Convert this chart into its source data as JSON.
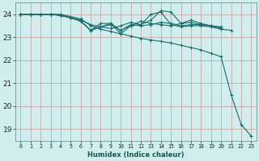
{
  "xlabel": "Humidex (Indice chaleur)",
  "bg_color": "#d0eeee",
  "line_color": "#1a6b6b",
  "grid_color_major": "#c8a8a8",
  "xlim": [
    -0.5,
    23.5
  ],
  "ylim": [
    18.5,
    24.5
  ],
  "xtick_labels": [
    "0",
    "1",
    "2",
    "3",
    "4",
    "5",
    "6",
    "7",
    "8",
    "9",
    "10",
    "11",
    "12",
    "13",
    "14",
    "15",
    "16",
    "17",
    "18",
    "19",
    "20",
    "21",
    "22",
    "23"
  ],
  "yticks": [
    19,
    20,
    21,
    22,
    23,
    24
  ],
  "series": [
    [
      24.0,
      24.0,
      24.0,
      24.0,
      24.0,
      23.9,
      23.8,
      23.5,
      23.35,
      23.25,
      23.15,
      23.05,
      22.95,
      22.88,
      22.82,
      22.75,
      22.65,
      22.55,
      22.45,
      22.3,
      22.15,
      20.5,
      19.2,
      18.7
    ],
    [
      24.0,
      24.0,
      24.0,
      24.0,
      23.95,
      23.85,
      23.75,
      23.55,
      23.45,
      23.38,
      23.5,
      23.65,
      23.55,
      24.0,
      24.1,
      23.55,
      23.45,
      23.5,
      23.5,
      23.45,
      23.35,
      23.3,
      null,
      null
    ],
    [
      24.0,
      24.0,
      24.0,
      24.0,
      23.95,
      23.85,
      23.7,
      23.3,
      23.6,
      23.6,
      23.15,
      23.5,
      23.55,
      23.75,
      24.15,
      24.1,
      23.6,
      23.65,
      23.55,
      23.5,
      23.45,
      null,
      null,
      null
    ],
    [
      24.0,
      24.0,
      24.0,
      24.0,
      23.95,
      23.85,
      23.7,
      23.3,
      23.45,
      23.55,
      23.3,
      23.5,
      23.7,
      23.6,
      23.55,
      23.5,
      23.6,
      23.75,
      23.6,
      23.5,
      23.4,
      null,
      null,
      null
    ],
    [
      24.0,
      24.0,
      24.0,
      24.0,
      23.95,
      23.85,
      23.7,
      23.3,
      23.45,
      23.6,
      23.3,
      23.55,
      23.5,
      23.55,
      23.65,
      23.6,
      23.5,
      23.55,
      23.55,
      23.5,
      23.4,
      null,
      null,
      null
    ]
  ]
}
